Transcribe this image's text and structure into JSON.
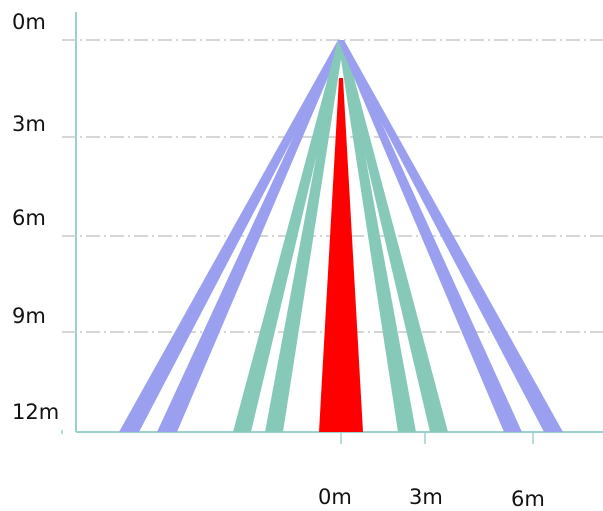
{
  "diagram": {
    "title": "",
    "y_labels": [
      "0m",
      "3m",
      "6m",
      "9m",
      "12m"
    ],
    "x_labels": [
      "0m",
      "3m",
      "6m"
    ],
    "colors": {
      "axis": "#9ccfcf",
      "grid": "#c8c8c8",
      "center_beam": "#ff0000",
      "inner_beam": "#86c9b8",
      "outer_beam": "#9b9ff0"
    },
    "beams": [
      {
        "name": "outer-left-1",
        "kind": "outer",
        "dir": -1,
        "near": 222,
        "far": 202
      },
      {
        "name": "outer-left-2",
        "kind": "outer",
        "dir": -1,
        "near": 184,
        "far": 164
      },
      {
        "name": "inner-left-1",
        "kind": "inner",
        "dir": -1,
        "near": 108,
        "far": 90
      },
      {
        "name": "inner-left-2",
        "kind": "inner",
        "dir": -1,
        "near": 76,
        "far": 58
      },
      {
        "name": "center-beam",
        "kind": "center",
        "dir": 0,
        "near": -22,
        "far": 22
      },
      {
        "name": "inner-right-1",
        "kind": "inner",
        "dir": 1,
        "near": 57,
        "far": 75
      },
      {
        "name": "inner-right-2",
        "kind": "inner",
        "dir": 1,
        "near": 89,
        "far": 107
      },
      {
        "name": "outer-right-1",
        "kind": "outer",
        "dir": 1,
        "near": 163,
        "far": 181
      },
      {
        "name": "outer-right-2",
        "kind": "outer",
        "dir": 1,
        "near": 203,
        "far": 222
      }
    ]
  }
}
